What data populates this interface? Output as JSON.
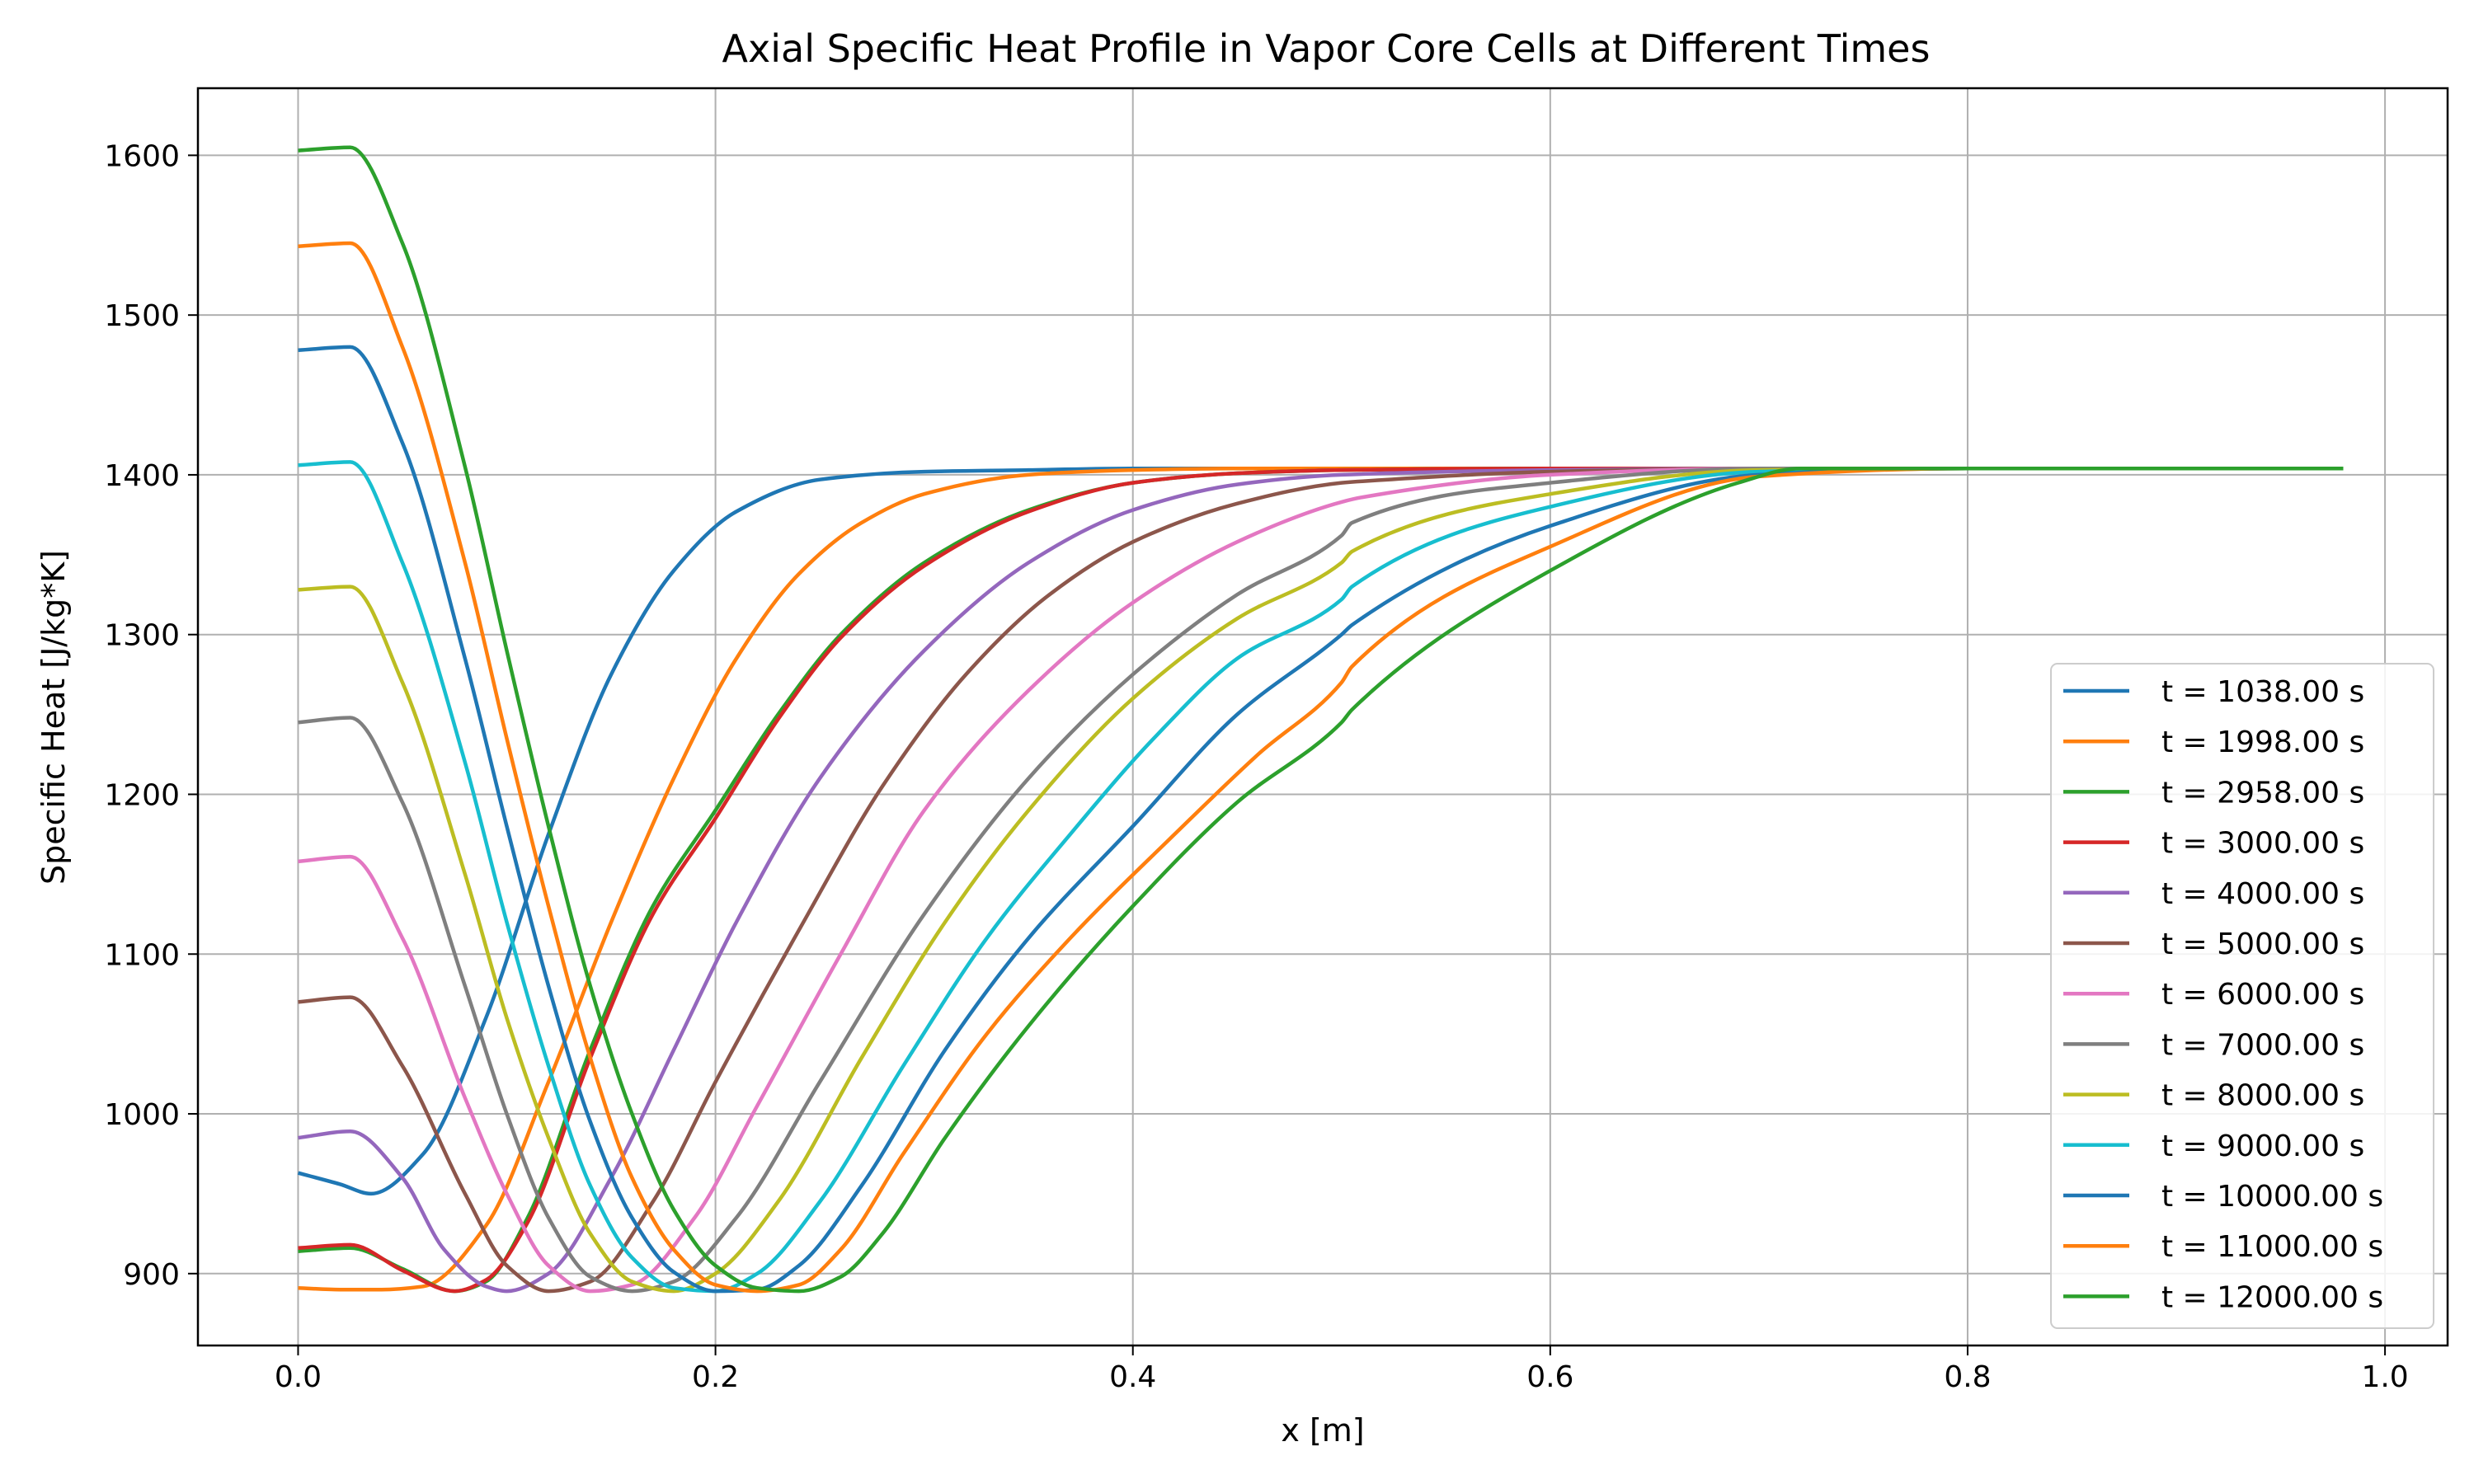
{
  "chart_data": {
    "type": "line",
    "title": "Axial Specific Heat Profile in Vapor Core Cells at Different Times",
    "xlabel": "x [m]",
    "ylabel": "Specific Heat [J/kg*K]",
    "xlim": [
      -0.048,
      1.03
    ],
    "ylim": [
      855,
      1642
    ],
    "xticks": [
      0.0,
      0.2,
      0.4,
      0.6,
      0.8,
      1.0
    ],
    "xtick_labels": [
      "0.0",
      "0.2",
      "0.4",
      "0.6",
      "0.8",
      "1.0"
    ],
    "yticks": [
      900,
      1000,
      1100,
      1200,
      1300,
      1400,
      1500,
      1600
    ],
    "ytick_labels": [
      "900",
      "1000",
      "1100",
      "1200",
      "1300",
      "1400",
      "1500",
      "1600"
    ],
    "grid": true,
    "legend_position": "lower-right",
    "series": [
      {
        "name": "t = 1038.00 s",
        "color": "#1f77b4",
        "x": [
          0.0,
          0.02,
          0.035,
          0.06,
          0.09,
          0.12,
          0.15,
          0.18,
          0.21,
          0.25,
          0.3,
          0.35,
          0.4,
          0.45,
          0.5,
          0.6,
          0.7,
          0.8,
          0.9,
          0.98
        ],
        "y": [
          963,
          956,
          950,
          975,
          1060,
          1175,
          1275,
          1340,
          1377,
          1397,
          1402,
          1403,
          1404,
          1404,
          1404,
          1404,
          1404,
          1404,
          1404,
          1404
        ]
      },
      {
        "name": "t = 1998.00 s",
        "color": "#ff7f0e",
        "x": [
          0.0,
          0.02,
          0.04,
          0.06,
          0.09,
          0.12,
          0.15,
          0.18,
          0.21,
          0.24,
          0.27,
          0.3,
          0.35,
          0.4,
          0.45,
          0.5,
          0.6,
          0.7,
          0.8,
          0.9,
          0.98
        ],
        "y": [
          891,
          890,
          890,
          892,
          930,
          1020,
          1120,
          1210,
          1285,
          1338,
          1370,
          1388,
          1400,
          1403,
          1404,
          1404,
          1404,
          1404,
          1404,
          1404,
          1404
        ]
      },
      {
        "name": "t = 2958.00 s",
        "color": "#2ca02c",
        "x": [
          0.0,
          0.025,
          0.05,
          0.075,
          0.09,
          0.11,
          0.14,
          0.17,
          0.2,
          0.23,
          0.26,
          0.3,
          0.35,
          0.4,
          0.45,
          0.5,
          0.6,
          0.7,
          0.8,
          0.9,
          0.98
        ],
        "y": [
          914,
          916,
          903,
          889,
          895,
          935,
          1040,
          1130,
          1190,
          1250,
          1300,
          1345,
          1378,
          1395,
          1401,
          1403,
          1404,
          1404,
          1404,
          1404,
          1404
        ]
      },
      {
        "name": "t = 3000.00 s",
        "color": "#d62728",
        "x": [
          0.0,
          0.025,
          0.05,
          0.075,
          0.09,
          0.11,
          0.14,
          0.17,
          0.2,
          0.23,
          0.26,
          0.3,
          0.35,
          0.4,
          0.45,
          0.5,
          0.6,
          0.7,
          0.8,
          0.9,
          0.98
        ],
        "y": [
          916,
          918,
          902,
          889,
          896,
          932,
          1035,
          1125,
          1185,
          1247,
          1298,
          1343,
          1377,
          1395,
          1401,
          1403,
          1404,
          1404,
          1404,
          1404,
          1404
        ]
      },
      {
        "name": "t = 4000.00 s",
        "color": "#9467bd",
        "x": [
          0.0,
          0.025,
          0.05,
          0.07,
          0.09,
          0.1,
          0.12,
          0.15,
          0.18,
          0.21,
          0.25,
          0.3,
          0.35,
          0.4,
          0.45,
          0.5,
          0.6,
          0.7,
          0.8,
          0.9,
          0.98
        ],
        "y": [
          985,
          989,
          960,
          915,
          892,
          889,
          900,
          960,
          1040,
          1120,
          1210,
          1290,
          1345,
          1378,
          1394,
          1400,
          1403,
          1404,
          1404,
          1404,
          1404
        ]
      },
      {
        "name": "t = 5000.00 s",
        "color": "#8c564b",
        "x": [
          0.0,
          0.025,
          0.05,
          0.08,
          0.1,
          0.12,
          0.14,
          0.17,
          0.2,
          0.24,
          0.28,
          0.32,
          0.36,
          0.4,
          0.45,
          0.5,
          0.51,
          0.6,
          0.7,
          0.8,
          0.9,
          0.98
        ],
        "y": [
          1070,
          1073,
          1030,
          950,
          905,
          889,
          895,
          945,
          1020,
          1115,
          1205,
          1275,
          1325,
          1358,
          1382,
          1395,
          1396,
          1402,
          1404,
          1404,
          1404,
          1404
        ]
      },
      {
        "name": "t = 6000.00 s",
        "color": "#e377c2",
        "x": [
          0.0,
          0.025,
          0.05,
          0.08,
          0.1,
          0.12,
          0.14,
          0.16,
          0.19,
          0.22,
          0.26,
          0.3,
          0.35,
          0.4,
          0.45,
          0.5,
          0.51,
          0.6,
          0.7,
          0.8,
          0.9,
          0.98
        ],
        "y": [
          1158,
          1161,
          1110,
          1010,
          950,
          905,
          889,
          893,
          935,
          1005,
          1100,
          1190,
          1265,
          1320,
          1358,
          1383,
          1386,
          1400,
          1404,
          1404,
          1404,
          1404
        ]
      },
      {
        "name": "t = 7000.00 s",
        "color": "#7f7f7f",
        "x": [
          0.0,
          0.025,
          0.05,
          0.08,
          0.1,
          0.12,
          0.14,
          0.16,
          0.18,
          0.21,
          0.25,
          0.3,
          0.35,
          0.4,
          0.45,
          0.5,
          0.505,
          0.6,
          0.7,
          0.8,
          0.9,
          0.98
        ],
        "y": [
          1245,
          1248,
          1195,
          1080,
          1000,
          935,
          898,
          889,
          895,
          935,
          1020,
          1125,
          1210,
          1275,
          1325,
          1362,
          1370,
          1395,
          1404,
          1404,
          1404,
          1404
        ]
      },
      {
        "name": "t = 8000.00 s",
        "color": "#bcbd22",
        "x": [
          0.0,
          0.025,
          0.05,
          0.08,
          0.1,
          0.12,
          0.14,
          0.16,
          0.18,
          0.2,
          0.23,
          0.27,
          0.31,
          0.35,
          0.4,
          0.45,
          0.5,
          0.505,
          0.6,
          0.7,
          0.8,
          0.9,
          0.98
        ],
        "y": [
          1328,
          1330,
          1270,
          1150,
          1060,
          985,
          925,
          895,
          889,
          900,
          945,
          1035,
          1120,
          1190,
          1260,
          1310,
          1345,
          1352,
          1388,
          1403,
          1404,
          1404,
          1404
        ]
      },
      {
        "name": "t = 9000.00 s",
        "color": "#17becf",
        "x": [
          0.0,
          0.025,
          0.05,
          0.08,
          0.1,
          0.12,
          0.14,
          0.16,
          0.18,
          0.2,
          0.22,
          0.25,
          0.29,
          0.33,
          0.37,
          0.41,
          0.45,
          0.5,
          0.505,
          0.6,
          0.7,
          0.8,
          0.9,
          0.98
        ],
        "y": [
          1406,
          1408,
          1345,
          1220,
          1120,
          1030,
          955,
          910,
          891,
          889,
          900,
          945,
          1030,
          1110,
          1175,
          1235,
          1285,
          1322,
          1330,
          1380,
          1402,
          1404,
          1404,
          1404
        ]
      },
      {
        "name": "t = 10000.00 s",
        "color": "#1f77b4",
        "x": [
          0.0,
          0.025,
          0.05,
          0.08,
          0.1,
          0.12,
          0.14,
          0.16,
          0.18,
          0.2,
          0.22,
          0.24,
          0.27,
          0.31,
          0.35,
          0.4,
          0.45,
          0.5,
          0.505,
          0.6,
          0.7,
          0.8,
          0.9,
          0.98
        ],
        "y": [
          1478,
          1480,
          1420,
          1285,
          1180,
          1080,
          995,
          935,
          901,
          889,
          890,
          905,
          955,
          1040,
          1110,
          1180,
          1250,
          1300,
          1306,
          1368,
          1400,
          1404,
          1404,
          1404
        ]
      },
      {
        "name": "t = 11000.00 s",
        "color": "#ff7f0e",
        "x": [
          0.0,
          0.025,
          0.05,
          0.08,
          0.1,
          0.12,
          0.14,
          0.16,
          0.18,
          0.2,
          0.22,
          0.24,
          0.26,
          0.29,
          0.33,
          0.37,
          0.42,
          0.46,
          0.5,
          0.505,
          0.6,
          0.7,
          0.8,
          0.9,
          0.98
        ],
        "y": [
          1543,
          1545,
          1480,
          1345,
          1235,
          1130,
          1035,
          960,
          915,
          893,
          889,
          893,
          915,
          975,
          1050,
          1110,
          1175,
          1225,
          1270,
          1280,
          1355,
          1399,
          1404,
          1404,
          1404
        ]
      },
      {
        "name": "t = 12000.00 s",
        "color": "#2ca02c",
        "x": [
          0.0,
          0.025,
          0.05,
          0.08,
          0.1,
          0.12,
          0.14,
          0.16,
          0.18,
          0.2,
          0.22,
          0.24,
          0.26,
          0.28,
          0.31,
          0.35,
          0.4,
          0.45,
          0.5,
          0.505,
          0.6,
          0.69,
          0.72,
          0.8,
          0.9,
          0.98
        ],
        "y": [
          1603,
          1605,
          1545,
          1405,
          1290,
          1180,
          1080,
          1000,
          940,
          905,
          891,
          889,
          898,
          925,
          985,
          1055,
          1130,
          1195,
          1245,
          1253,
          1340,
          1395,
          1404,
          1404,
          1404,
          1404
        ]
      }
    ]
  }
}
